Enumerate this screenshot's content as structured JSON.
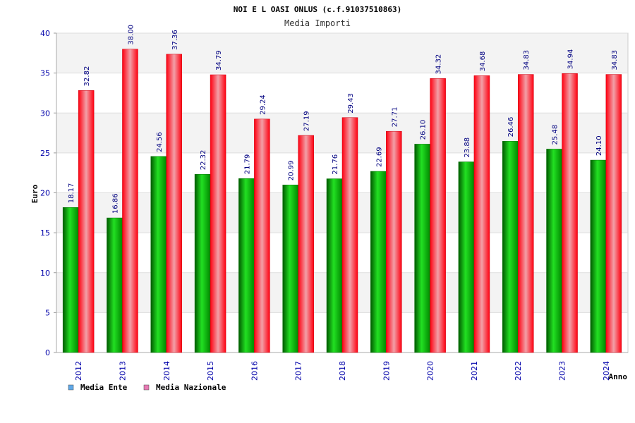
{
  "chart_data": {
    "type": "bar",
    "title": "NOI E L OASI ONLUS (c.f.91037510863)",
    "subtitle": "Media Importi",
    "xlabel": "Anno",
    "ylabel": "Euro",
    "ylim": [
      0,
      40
    ],
    "yticks": [
      0,
      5,
      10,
      15,
      20,
      25,
      30,
      35,
      40
    ],
    "categories": [
      "2012",
      "2013",
      "2014",
      "2015",
      "2016",
      "2017",
      "2018",
      "2019",
      "2020",
      "2021",
      "2022",
      "2023",
      "2024"
    ],
    "series": [
      {
        "name": "Media Ente",
        "values": [
          18.17,
          16.86,
          24.56,
          22.32,
          21.79,
          20.99,
          21.76,
          22.69,
          26.1,
          23.88,
          26.46,
          25.48,
          24.1
        ],
        "labels": [
          "18.17",
          "16.86",
          "24.56",
          "22.32",
          "21.79",
          "20.99",
          "21.76",
          "22.69",
          "26.10",
          "23.88",
          "26.46",
          "25.48",
          "24.10"
        ],
        "color": "#00c000",
        "legend_color": "#5fa8e8"
      },
      {
        "name": "Media Nazionale",
        "values": [
          32.82,
          38.0,
          37.36,
          34.79,
          29.24,
          27.19,
          29.43,
          27.71,
          34.32,
          34.68,
          34.83,
          34.94,
          34.83
        ],
        "labels": [
          "32.82",
          "38.00",
          "37.36",
          "34.79",
          "29.24",
          "27.19",
          "29.43",
          "27.71",
          "34.32",
          "34.68",
          "34.83",
          "34.94",
          "34.83"
        ],
        "color": "#ff1020",
        "legend_color": "#e87ab4"
      }
    ],
    "legend": "bottom-left",
    "grid": true
  }
}
